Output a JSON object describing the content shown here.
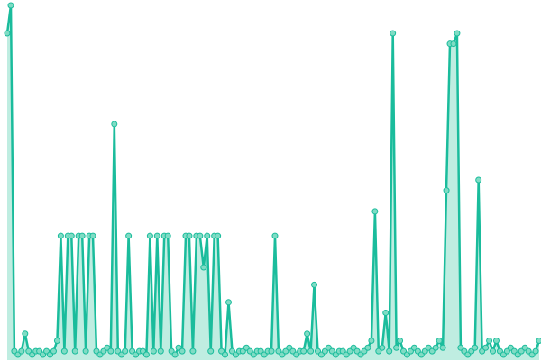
{
  "chart_data": {
    "type": "line",
    "title": "",
    "xlabel": "",
    "ylabel": "",
    "grid": false,
    "axes_visible": false,
    "markers": true,
    "area_fill": true,
    "ylim": [
      0,
      100
    ],
    "color": "#1abc9c",
    "marker_fill": "#7fdcc4",
    "series": [
      {
        "values": [
          92,
          100,
          1,
          0,
          1,
          6,
          1,
          0,
          1,
          1,
          0,
          1,
          0,
          1,
          4,
          34,
          1,
          34,
          34,
          1,
          34,
          34,
          1,
          34,
          34,
          1,
          0,
          1,
          2,
          1,
          66,
          1,
          0,
          1,
          34,
          1,
          0,
          1,
          1,
          0,
          34,
          1,
          34,
          1,
          34,
          34,
          1,
          0,
          2,
          1,
          34,
          34,
          1,
          34,
          34,
          25,
          34,
          1,
          34,
          34,
          1,
          0,
          15,
          1,
          0,
          1,
          1,
          2,
          1,
          0,
          1,
          1,
          0,
          1,
          1,
          34,
          1,
          0,
          1,
          2,
          1,
          0,
          1,
          1,
          6,
          1,
          20,
          1,
          0,
          1,
          2,
          1,
          0,
          1,
          1,
          0,
          1,
          2,
          1,
          0,
          1,
          2,
          4,
          41,
          1,
          2,
          12,
          1,
          92,
          2,
          4,
          1,
          0,
          1,
          2,
          1,
          0,
          1,
          2,
          1,
          2,
          4,
          2,
          47,
          89,
          89,
          92,
          2,
          1,
          0,
          1,
          2,
          50,
          1,
          2,
          4,
          1,
          4,
          1,
          0,
          1,
          2,
          1,
          0,
          1,
          2,
          1,
          0,
          1,
          4
        ]
      }
    ]
  }
}
